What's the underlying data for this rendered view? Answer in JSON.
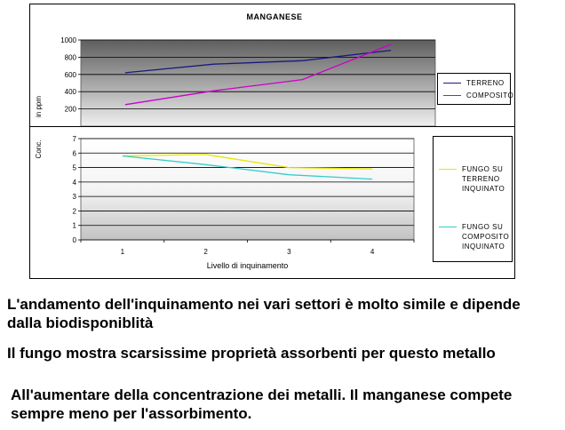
{
  "chart_data": [
    {
      "type": "line",
      "title": "MANGANESE",
      "ylabel": "in ppm",
      "xlabel": "",
      "ylim": [
        0,
        1000
      ],
      "yticks": [
        200,
        400,
        600,
        800,
        1000
      ],
      "x": [
        1,
        2,
        3,
        4
      ],
      "series": [
        {
          "name": "TERRENO",
          "values": [
            620,
            720,
            760,
            880
          ],
          "color": "#1a1a80"
        },
        {
          "name": "COMPOSITO",
          "values": [
            250,
            410,
            540,
            950
          ],
          "color": "#cc00cc"
        }
      ],
      "legend": "right",
      "grid": true
    },
    {
      "type": "line",
      "title": "",
      "ylabel": "Conc.",
      "xlabel": "Livello di inquinamento",
      "ylim": [
        0,
        7
      ],
      "yticks": [
        0,
        1,
        2,
        3,
        4,
        5,
        6,
        7
      ],
      "categories": [
        "1",
        "2",
        "3",
        "4"
      ],
      "series": [
        {
          "name": "FUNGO SU TERRENO INQUINATO",
          "values": [
            5.8,
            5.9,
            5.0,
            4.9
          ],
          "color": "#e6e600"
        },
        {
          "name": "FUNGO SU COMPOSITO INQUINATO",
          "values": [
            5.8,
            5.2,
            4.5,
            4.2
          ],
          "color": "#33cccc"
        }
      ],
      "legend": "right",
      "grid": true
    }
  ],
  "captions": [
    "L'andamento dell'inquinamento nei vari settori è molto simile e dipende dalla biodisponiblità",
    "Il fungo mostra scarsissime proprietà assorbenti per questo metallo",
    "All'aumentare della concentrazione dei metalli. Il manganese compete sempre meno per l'assorbimento."
  ]
}
